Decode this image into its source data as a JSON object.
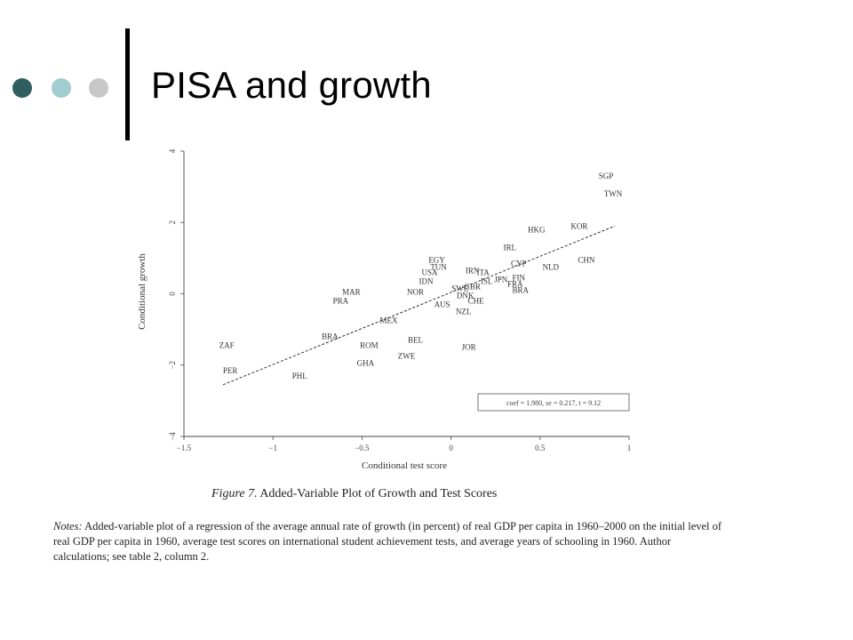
{
  "slide": {
    "title": "PISA and growth",
    "bullet_colors": [
      "#2f5f5e",
      "#9fcdd0",
      "#c8c8c8"
    ]
  },
  "figure": {
    "caption_label": "Figure 7.",
    "caption_text": " Added-Variable Plot of Growth and Test Scores",
    "notes_label": "Notes:",
    "notes_text": " Added-variable plot of a regression of the average annual rate of growth (in percent) of real GDP per capita in 1960–2000 on the initial level of real GDP per capita in 1960, average test scores on international student achievement tests, and average years of schooling in 1960. Author calculations; see table 2, column 2."
  },
  "chart_data": {
    "type": "scatter",
    "xlabel": "Conditional test score",
    "ylabel": "Conditional growth",
    "xlim": [
      -1.5,
      1.0
    ],
    "ylim": [
      -4,
      4
    ],
    "xticks": [
      -1.5,
      -1,
      -0.5,
      0,
      0.5,
      1
    ],
    "xtick_labels": [
      "−1.5",
      "−1",
      "−0.5",
      "0",
      "0.5",
      "1"
    ],
    "yticks": [
      -4,
      -2,
      0,
      2,
      4
    ],
    "ytick_labels": [
      "−4",
      "−2",
      "0",
      "2",
      "4"
    ],
    "grid": false,
    "fit_line": {
      "style": "dashed",
      "x": [
        -1.28,
        0.92
      ],
      "y": [
        -2.55,
        1.9
      ]
    },
    "stats_box": "coef = 1.980, se = 0.217, t = 9.12",
    "points": [
      {
        "label": "SGP",
        "x": 0.87,
        "y": 3.3
      },
      {
        "label": "TWN",
        "x": 0.91,
        "y": 2.8
      },
      {
        "label": "KOR",
        "x": 0.72,
        "y": 1.9
      },
      {
        "label": "HKG",
        "x": 0.48,
        "y": 1.8
      },
      {
        "label": "CHN",
        "x": 0.76,
        "y": 0.95
      },
      {
        "label": "IRL",
        "x": 0.33,
        "y": 1.3
      },
      {
        "label": "NLD",
        "x": 0.56,
        "y": 0.75
      },
      {
        "label": "CYP",
        "x": 0.38,
        "y": 0.85
      },
      {
        "label": "FIN",
        "x": 0.38,
        "y": 0.45
      },
      {
        "label": "FRA",
        "x": 0.36,
        "y": 0.28
      },
      {
        "label": "BRA",
        "x": 0.39,
        "y": 0.1
      },
      {
        "label": "JPN",
        "x": 0.28,
        "y": 0.4
      },
      {
        "label": "ISL",
        "x": 0.2,
        "y": 0.35
      },
      {
        "label": "ITA",
        "x": 0.18,
        "y": 0.6
      },
      {
        "label": "IRN",
        "x": 0.12,
        "y": 0.65
      },
      {
        "label": "EGY",
        "x": -0.08,
        "y": 0.95
      },
      {
        "label": "TUN",
        "x": -0.07,
        "y": 0.75
      },
      {
        "label": "USA",
        "x": -0.12,
        "y": 0.6
      },
      {
        "label": "IDN",
        "x": -0.14,
        "y": 0.35
      },
      {
        "label": "NOR",
        "x": -0.2,
        "y": 0.05
      },
      {
        "label": "GBR",
        "x": 0.12,
        "y": 0.2
      },
      {
        "label": "SWE",
        "x": 0.05,
        "y": 0.15
      },
      {
        "label": "DNK",
        "x": 0.08,
        "y": -0.05
      },
      {
        "label": "CHE",
        "x": 0.14,
        "y": -0.2
      },
      {
        "label": "AUS",
        "x": -0.05,
        "y": -0.3
      },
      {
        "label": "NZL",
        "x": 0.07,
        "y": -0.5
      },
      {
        "label": "MAR",
        "x": -0.56,
        "y": 0.05
      },
      {
        "label": "PRA",
        "x": -0.62,
        "y": -0.2
      },
      {
        "label": "MEX",
        "x": -0.35,
        "y": -0.75
      },
      {
        "label": "ZAF",
        "x": -1.26,
        "y": -1.45
      },
      {
        "label": "BRA",
        "x": -0.68,
        "y": -1.2
      },
      {
        "label": "ROM",
        "x": -0.46,
        "y": -1.45
      },
      {
        "label": "BEL",
        "x": -0.2,
        "y": -1.3
      },
      {
        "label": "JOR",
        "x": 0.1,
        "y": -1.5
      },
      {
        "label": "ZWE",
        "x": -0.25,
        "y": -1.75
      },
      {
        "label": "GHA",
        "x": -0.48,
        "y": -1.95
      },
      {
        "label": "PER",
        "x": -1.24,
        "y": -2.15
      },
      {
        "label": "PHL",
        "x": -0.85,
        "y": -2.3
      }
    ]
  }
}
